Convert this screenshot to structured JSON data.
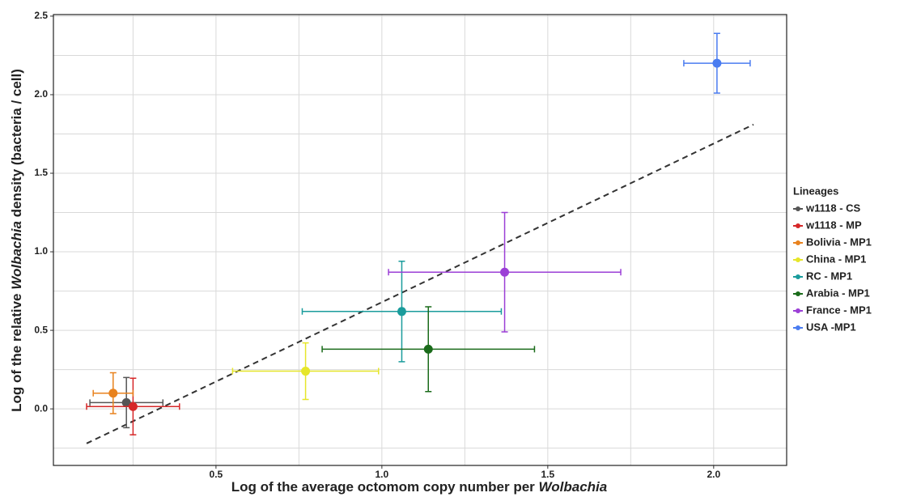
{
  "chart_data": {
    "type": "scatter",
    "xlabel": [
      "Log of the average octomom copy number per ",
      "Wolbachia"
    ],
    "ylabel": [
      "Log of the relative ",
      "Wolbachia",
      " density (bacteria / cell)"
    ],
    "legend_title": "Lineages",
    "xlim": [
      0.01,
      2.22
    ],
    "ylim": [
      -0.36,
      2.51
    ],
    "xticks": [
      0.5,
      {
        "value": 1.0,
        "label": "1.0"
      },
      1.5,
      {
        "value": 2.0,
        "label": "2.0"
      }
    ],
    "yticks": [
      {
        "value": 0.0,
        "label": "0.0"
      },
      0.5,
      {
        "value": 1.0,
        "label": "1.0"
      },
      1.5,
      {
        "value": 2.0,
        "label": "2.0"
      },
      2.5
    ],
    "x_minor_grid": [
      0.25,
      0.75,
      1.25,
      1.75
    ],
    "y_minor_grid": [
      -0.25,
      0.25,
      0.75,
      1.25,
      1.75,
      2.25
    ],
    "grid": true,
    "trendline": {
      "x": [
        0.11,
        2.12
      ],
      "y": [
        -0.22,
        1.81
      ]
    },
    "series": [
      {
        "name": "w1118 - CS",
        "color": "#555555",
        "x": [
          0.23
        ],
        "values": [
          0.04
        ],
        "xerr": [
          0.11
        ],
        "yerr": [
          0.16
        ]
      },
      {
        "name": "w1118 - MP",
        "color": "#d62728",
        "x": [
          0.25
        ],
        "values": [
          0.015
        ],
        "xerr": [
          0.14
        ],
        "yerr": [
          0.18
        ]
      },
      {
        "name": "Bolivia - MP1",
        "color": "#e8821e",
        "x": [
          0.19
        ],
        "values": [
          0.1
        ],
        "xerr": [
          0.06
        ],
        "yerr": [
          0.13
        ]
      },
      {
        "name": "China - MP1",
        "color": "#e6e62a",
        "x": [
          0.77
        ],
        "values": [
          0.24
        ],
        "xerr": [
          0.22
        ],
        "yerr": [
          0.18
        ]
      },
      {
        "name": "RC - MP1",
        "color": "#1a9c9c",
        "x": [
          1.06
        ],
        "values": [
          0.62
        ],
        "xerr": [
          0.3
        ],
        "yerr": [
          0.32
        ]
      },
      {
        "name": "Arabia - MP1",
        "color": "#1a6b1a",
        "x": [
          1.14
        ],
        "values": [
          0.38
        ],
        "xerr": [
          0.32
        ],
        "yerr": [
          0.27
        ]
      },
      {
        "name": "France - MP1",
        "color": "#9b3fd6",
        "x": [
          1.37
        ],
        "values": [
          0.87
        ],
        "xerr": [
          0.35
        ],
        "yerr": [
          0.38
        ]
      },
      {
        "name": "USA -MP1",
        "color": "#4a7cf0",
        "x": [
          2.01
        ],
        "values": [
          2.2
        ],
        "xerr": [
          0.1
        ],
        "yerr": [
          0.19
        ]
      }
    ]
  }
}
